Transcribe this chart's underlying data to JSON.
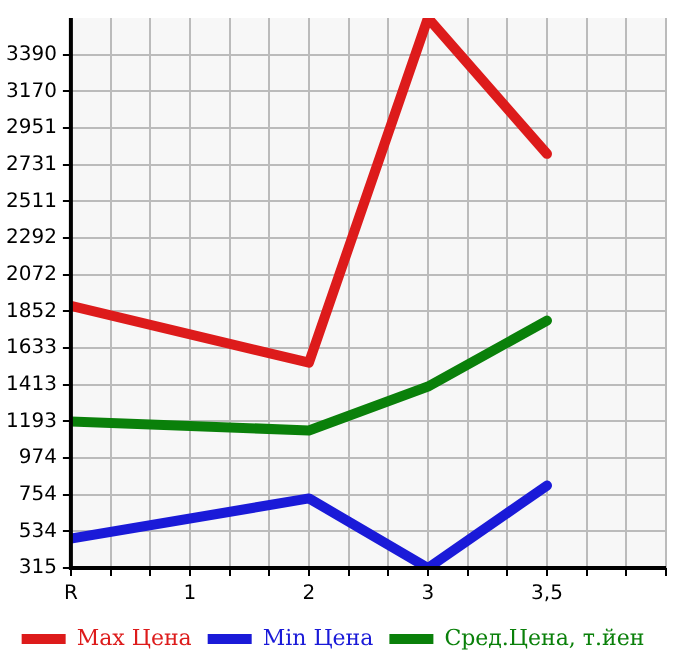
{
  "chart_data": {
    "type": "line",
    "categories": [
      "R",
      "1",
      "2",
      "3",
      "3,5",
      null
    ],
    "series": [
      {
        "name": "Max Цена",
        "color": "#dd1b1b",
        "values": [
          1885,
          null,
          1545,
          3610,
          2796,
          null
        ]
      },
      {
        "name": "Min Цена",
        "color": "#1a1ad8",
        "values": [
          491,
          null,
          732,
          315,
          809,
          null
        ]
      },
      {
        "name": "Сред.Цена, т.йен",
        "color": "#0a800a",
        "values": [
          1193,
          null,
          1139,
          1402,
          1797,
          null
        ]
      }
    ],
    "ylim": [
      315,
      3610
    ],
    "yticks": [
      315,
      534,
      754,
      974,
      1193,
      1413,
      1633,
      1852,
      2072,
      2292,
      2511,
      2731,
      2951,
      3170,
      3390
    ],
    "grid": true,
    "legend": "bottom",
    "marker": "none",
    "line_style": "solid"
  }
}
